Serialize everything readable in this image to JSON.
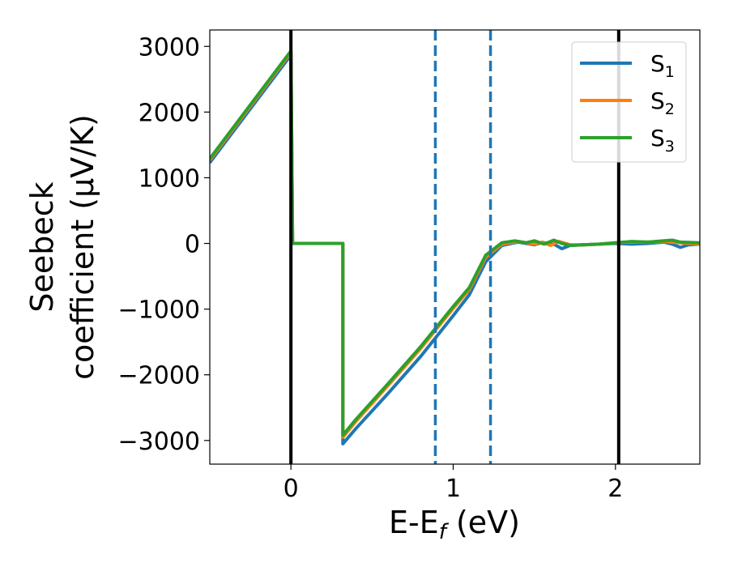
{
  "chart_data": {
    "type": "line",
    "xlabel": "E-E",
    "xlabel_sub": "f",
    "xlabel_unit": " (eV)",
    "ylabel_line1": "Seebeck",
    "ylabel_line2": "coefficient  (μV/K)",
    "xlim": [
      -0.5,
      2.52
    ],
    "ylim": [
      -3360,
      3250
    ],
    "xticks": [
      0,
      1,
      2
    ],
    "xtick_labels": [
      "0",
      "1",
      "2"
    ],
    "yticks": [
      3000,
      2000,
      1000,
      0,
      -1000,
      -2000,
      -3000
    ],
    "ytick_labels": [
      "3000",
      "2000",
      "1000",
      "0",
      "−1000",
      "−2000",
      "−3000"
    ],
    "legend_position": "top-right",
    "series": [
      {
        "name": "S",
        "sub": "1",
        "color": "#1f77b4",
        "x": [
          -0.5,
          0.0,
          0.01,
          0.32,
          0.32,
          0.4,
          0.6,
          0.8,
          1.0,
          1.1,
          1.2,
          1.3,
          1.4,
          1.5,
          1.55,
          1.62,
          1.67,
          1.72,
          1.8,
          1.9,
          2.0,
          2.1,
          2.2,
          2.3,
          2.35,
          2.4,
          2.45,
          2.52
        ],
        "y": [
          1230,
          2870,
          0,
          0,
          -3050,
          -2820,
          -2280,
          -1720,
          -1100,
          -780,
          -280,
          -30,
          20,
          -20,
          15,
          -10,
          -80,
          -30,
          -20,
          -10,
          0,
          -10,
          0,
          20,
          -10,
          -60,
          -20,
          -10
        ]
      },
      {
        "name": "S",
        "sub": "2",
        "color": "#ff7f0e",
        "x": [
          -0.5,
          0.0,
          0.01,
          0.32,
          0.32,
          0.4,
          0.6,
          0.8,
          1.0,
          1.1,
          1.2,
          1.3,
          1.4,
          1.5,
          1.55,
          1.6,
          1.65,
          1.72,
          1.8,
          1.9,
          2.0,
          2.1,
          2.2,
          2.3,
          2.4,
          2.52
        ],
        "y": [
          1270,
          2910,
          0,
          0,
          -2950,
          -2710,
          -2160,
          -1600,
          -990,
          -700,
          -210,
          -10,
          30,
          -10,
          20,
          -30,
          30,
          -20,
          -20,
          -10,
          10,
          20,
          20,
          30,
          10,
          -10
        ]
      },
      {
        "name": "S",
        "sub": "3",
        "color": "#2ca02c",
        "x": [
          -0.5,
          0.0,
          0.01,
          0.32,
          0.32,
          0.4,
          0.6,
          0.8,
          1.0,
          1.1,
          1.2,
          1.3,
          1.38,
          1.45,
          1.5,
          1.56,
          1.62,
          1.67,
          1.72,
          1.8,
          1.9,
          2.0,
          2.1,
          2.2,
          2.3,
          2.35,
          2.4,
          2.52
        ],
        "y": [
          1290,
          2930,
          0,
          0,
          -2920,
          -2680,
          -2130,
          -1570,
          -960,
          -670,
          -180,
          10,
          40,
          10,
          40,
          -10,
          50,
          0,
          -30,
          -20,
          -10,
          10,
          30,
          20,
          40,
          50,
          20,
          10
        ]
      }
    ],
    "vlines": [
      {
        "x": 0.0,
        "color": "#000000",
        "style": "solid"
      },
      {
        "x": 2.02,
        "color": "#000000",
        "style": "solid"
      },
      {
        "x": 0.89,
        "color": "#1f77b4",
        "style": "dashed"
      },
      {
        "x": 1.23,
        "color": "#1f77b4",
        "style": "dashed"
      }
    ]
  }
}
